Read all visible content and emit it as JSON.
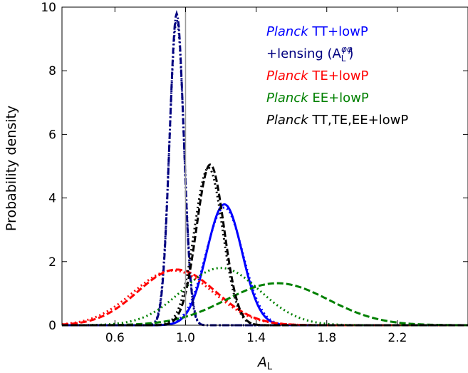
{
  "chart_data": {
    "type": "line",
    "xlabel": "A",
    "xlabel_sub": "L",
    "ylabel": "Probability density",
    "xlim": [
      0.3,
      2.6
    ],
    "ylim": [
      0,
      10
    ],
    "xticks": [
      0.6,
      1.0,
      1.4,
      1.8,
      2.2
    ],
    "xtick_labels": [
      "0.6",
      "1.0",
      "1.4",
      "1.8",
      "2.2"
    ],
    "yticks": [
      0,
      2,
      4,
      6,
      8,
      10
    ],
    "ytick_labels": [
      "0",
      "2",
      "4",
      "6",
      "8",
      "10"
    ],
    "reference_line_x": 1.0,
    "grid": false,
    "legend_position": "top-right",
    "legend": [
      {
        "italic": "Planck",
        "text": " TT+lowP",
        "color": "#0000ff"
      },
      {
        "italic": "",
        "text": "+lensing (A",
        "sub": "L",
        "sup": "φφ",
        "close": ")",
        "color": "#000080"
      },
      {
        "italic": "Planck",
        "text": " TE+lowP",
        "color": "#ff0000"
      },
      {
        "italic": "Planck",
        "text": " EE+lowP",
        "color": "#008000"
      },
      {
        "italic": "Planck",
        "text": " TT,TE,EE+lowP",
        "color": "#000000"
      }
    ],
    "series": [
      {
        "color": "#0000ff",
        "dash": "solid",
        "peak_x": 1.22,
        "peak_y": 3.8,
        "sigma": 0.1
      },
      {
        "color": "#0000ff",
        "dash": "dot",
        "peak_x": 1.22,
        "peak_y": 3.7,
        "sigma": 0.105
      },
      {
        "color": "#000080",
        "dash": "dashdot",
        "peak_x": 0.95,
        "peak_y": 9.8,
        "sigma": 0.04
      },
      {
        "color": "#000080",
        "dash": "dot",
        "peak_x": 0.95,
        "peak_y": 9.6,
        "sigma": 0.041
      },
      {
        "color": "#ff0000",
        "dash": "dashed",
        "peak_x": 0.95,
        "peak_y": 1.75,
        "sigma": 0.22
      },
      {
        "color": "#ff0000",
        "dash": "dot",
        "peak_x": 0.93,
        "peak_y": 1.72,
        "sigma": 0.225
      },
      {
        "color": "#008000",
        "dash": "dashed",
        "peak_x": 1.52,
        "peak_y": 1.32,
        "sigma": 0.29
      },
      {
        "color": "#008000",
        "dash": "dot",
        "peak_x": 1.2,
        "peak_y": 1.8,
        "sigma": 0.22
      },
      {
        "color": "#000000",
        "dash": "dashed",
        "peak_x": 1.14,
        "peak_y": 5.05,
        "sigma": 0.078
      },
      {
        "color": "#000000",
        "dash": "dot",
        "peak_x": 1.13,
        "peak_y": 4.95,
        "sigma": 0.08
      }
    ]
  }
}
